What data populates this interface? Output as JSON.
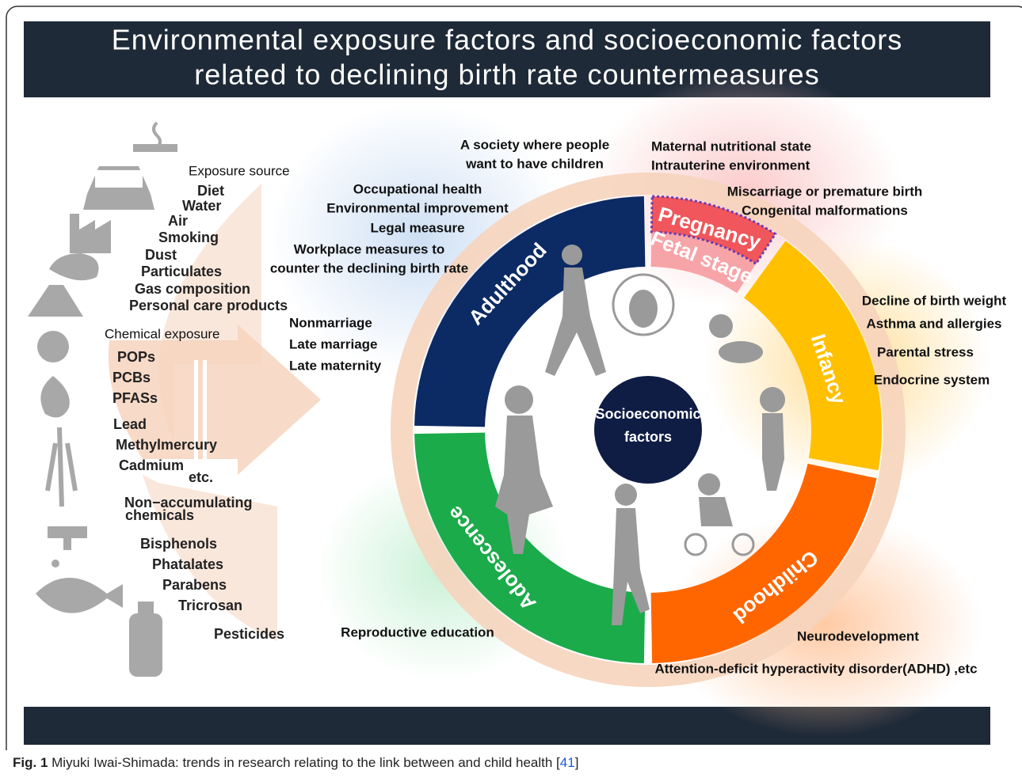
{
  "title": {
    "line1": "Environmental exposure factors and socioeconomic factors",
    "line2": "related to declining birth rate countermeasures"
  },
  "exposure_source": {
    "heading": "Exposure source",
    "items": [
      "Diet",
      "Water",
      "Air",
      "Smoking",
      "Dust",
      "Particulates",
      "Gas composition",
      "Personal care products"
    ]
  },
  "chemical_exposure": {
    "heading": "Chemical exposure",
    "items": [
      "POPs",
      "PCBs",
      "PFASs",
      "Lead",
      "Methylmercury",
      "Cadmium",
      "etc.",
      "Non−accumulating",
      "chemicals",
      "Bisphenols",
      "Phatalates",
      "Parabens",
      "Tricrosan",
      "Pesticides"
    ]
  },
  "center": {
    "line1": "Socioeconomic",
    "line2": "factors"
  },
  "stages": {
    "adulthood": "Adulthood",
    "pregnancy": "Pregnancy",
    "fetal": "Fetal stage",
    "infancy": "Infancy",
    "childhood": "Childhood",
    "adolescence": "Adolescence"
  },
  "annotations": {
    "society": [
      "A society where people",
      "want to have children"
    ],
    "maternal": [
      "Maternal nutritional state",
      "Intrauterine environment"
    ],
    "miscarriage": [
      "Miscarriage or premature birth",
      "Congenital malformations"
    ],
    "occupational": [
      "Occupational health",
      "Environmental improvement",
      "Legal measure"
    ],
    "workplace": [
      "Workplace measures to",
      "counter the declining birth rate"
    ],
    "marriage": [
      "Nonmarriage",
      "Late marriage",
      "Late maternity"
    ],
    "infancy": [
      "Decline of birth weight",
      "Asthma and allergies",
      "Parental stress",
      "Endocrine system"
    ],
    "adolescence": [
      "Reproductive education"
    ],
    "childhood": [
      "Neurodevelopment",
      "Attention-deficit hyperactivity disorder(ADHD) ,etc"
    ]
  },
  "caption": {
    "label": "Fig. 1",
    "text": "Miyuki Iwai-Shimada: trends in research relating to the link between and child health [",
    "ref": "41",
    "end": "]"
  }
}
